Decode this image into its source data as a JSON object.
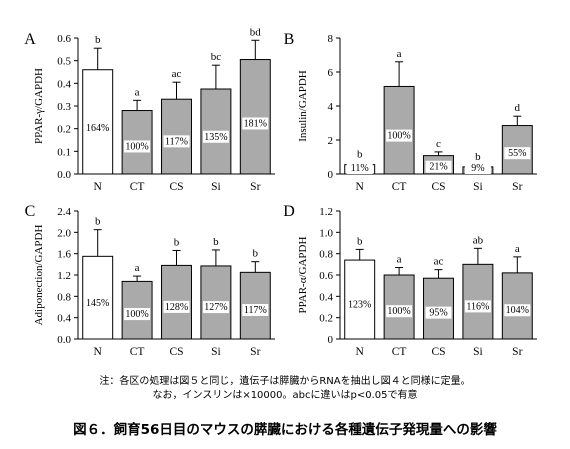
{
  "chart_data": [
    {
      "type": "bar",
      "panel": "A",
      "ylabel": "PPAR-γ/GAPDH",
      "categories": [
        "N",
        "CT",
        "CS",
        "Si",
        "Sr"
      ],
      "values": [
        0.46,
        0.28,
        0.33,
        0.375,
        0.505
      ],
      "errors": [
        0.095,
        0.045,
        0.075,
        0.105,
        0.085
      ],
      "letters": [
        "b",
        "a",
        "ac",
        "bc",
        "bd"
      ],
      "pct_labels": [
        "164%",
        "100%",
        "117%",
        "135%",
        "181%"
      ],
      "ylim": [
        0,
        0.6
      ],
      "yticks": [
        "0.0",
        "0.1",
        "0.2",
        "0.3",
        "0.4",
        "0.5",
        "0.6"
      ],
      "bar_fills": [
        "#ffffff",
        "#aaaaaa",
        "#aaaaaa",
        "#aaaaaa",
        "#aaaaaa"
      ]
    },
    {
      "type": "bar",
      "panel": "B",
      "ylabel": "Insulin/GAPDH",
      "categories": [
        "N",
        "CT",
        "CS",
        "Si",
        "Sr"
      ],
      "values": [
        0.55,
        5.15,
        1.08,
        0.42,
        2.85
      ],
      "errors": [
        0.12,
        1.45,
        0.22,
        0.12,
        0.55
      ],
      "letters": [
        "b",
        "a",
        "c",
        "b",
        "d"
      ],
      "pct_labels": [
        "11%",
        "100%",
        "21%",
        "9%",
        "55%"
      ],
      "ylim": [
        0,
        8
      ],
      "yticks": [
        "0",
        "2",
        "4",
        "6",
        "8"
      ],
      "bar_fills": [
        "#ffffff",
        "#aaaaaa",
        "#aaaaaa",
        "#aaaaaa",
        "#aaaaaa"
      ]
    },
    {
      "type": "bar",
      "panel": "C",
      "ylabel": "Adiponection/GAPDH",
      "categories": [
        "N",
        "CT",
        "CS",
        "Si",
        "Sr"
      ],
      "values": [
        1.55,
        1.08,
        1.38,
        1.37,
        1.25
      ],
      "errors": [
        0.5,
        0.1,
        0.28,
        0.3,
        0.2
      ],
      "letters": [
        "b",
        "a",
        "b",
        "b",
        "b"
      ],
      "pct_labels": [
        "145%",
        "100%",
        "128%",
        "127%",
        "117%"
      ],
      "ylim": [
        0,
        2.4
      ],
      "yticks": [
        "0.0",
        "0.4",
        "0.8",
        "1.2",
        "1.6",
        "2.0",
        "2.4"
      ],
      "bar_fills": [
        "#ffffff",
        "#aaaaaa",
        "#aaaaaa",
        "#aaaaaa",
        "#aaaaaa"
      ]
    },
    {
      "type": "bar",
      "panel": "D",
      "ylabel": "PPAR-α/GAPDH",
      "categories": [
        "N",
        "CT",
        "CS",
        "Si",
        "Sr"
      ],
      "values": [
        0.74,
        0.6,
        0.57,
        0.7,
        0.62
      ],
      "errors": [
        0.1,
        0.07,
        0.08,
        0.15,
        0.15
      ],
      "letters": [
        "b",
        "a",
        "ac",
        "ab",
        "a"
      ],
      "pct_labels": [
        "123%",
        "100%",
        "95%",
        "116%",
        "104%"
      ],
      "ylim": [
        0,
        1.2
      ],
      "yticks": [
        "0",
        "0.2",
        "0.4",
        "0.6",
        "0.8",
        "1.0",
        "1.2"
      ],
      "bar_fills": [
        "#ffffff",
        "#aaaaaa",
        "#aaaaaa",
        "#aaaaaa",
        "#aaaaaa"
      ]
    }
  ],
  "note_line1": "注：各区の処理は図５と同じ，遺伝子は膵臓からRNAを抽出し図４と同様に定量。",
  "note_line2": "なお，インスリンは×10000。abcに違いはp<0.05で有意",
  "caption": "図６．飼育56日目のマウスの膵臓における各種遺伝子発現量への影響"
}
